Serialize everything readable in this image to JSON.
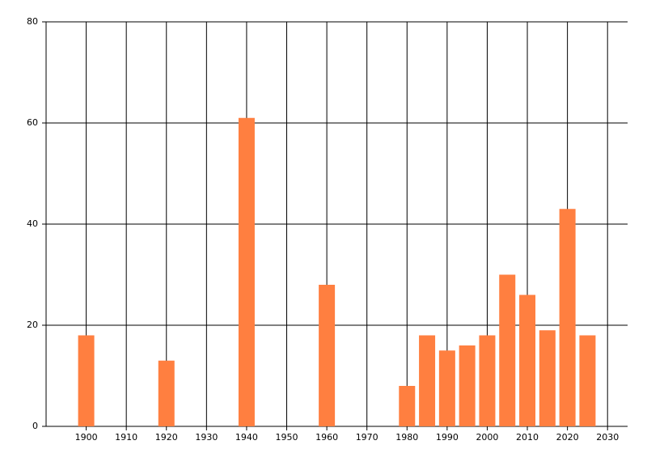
{
  "chart_data": {
    "type": "bar",
    "x": [
      1900,
      1920,
      1940,
      1960,
      1980,
      1985,
      1990,
      1995,
      2000,
      2005,
      2010,
      2015,
      2020,
      2025
    ],
    "values": [
      18,
      13,
      61,
      28,
      8,
      18,
      15,
      16,
      18,
      30,
      26,
      19,
      43,
      18
    ],
    "color": "#ff7f40",
    "xlim": [
      1890,
      2035
    ],
    "xticks": [
      1900,
      1910,
      1920,
      1930,
      1940,
      1950,
      1960,
      1970,
      1980,
      1990,
      2000,
      2010,
      2020,
      2030
    ],
    "ylim": [
      0,
      80
    ],
    "yticks": [
      0,
      20,
      40,
      60,
      80
    ],
    "grid": true
  }
}
